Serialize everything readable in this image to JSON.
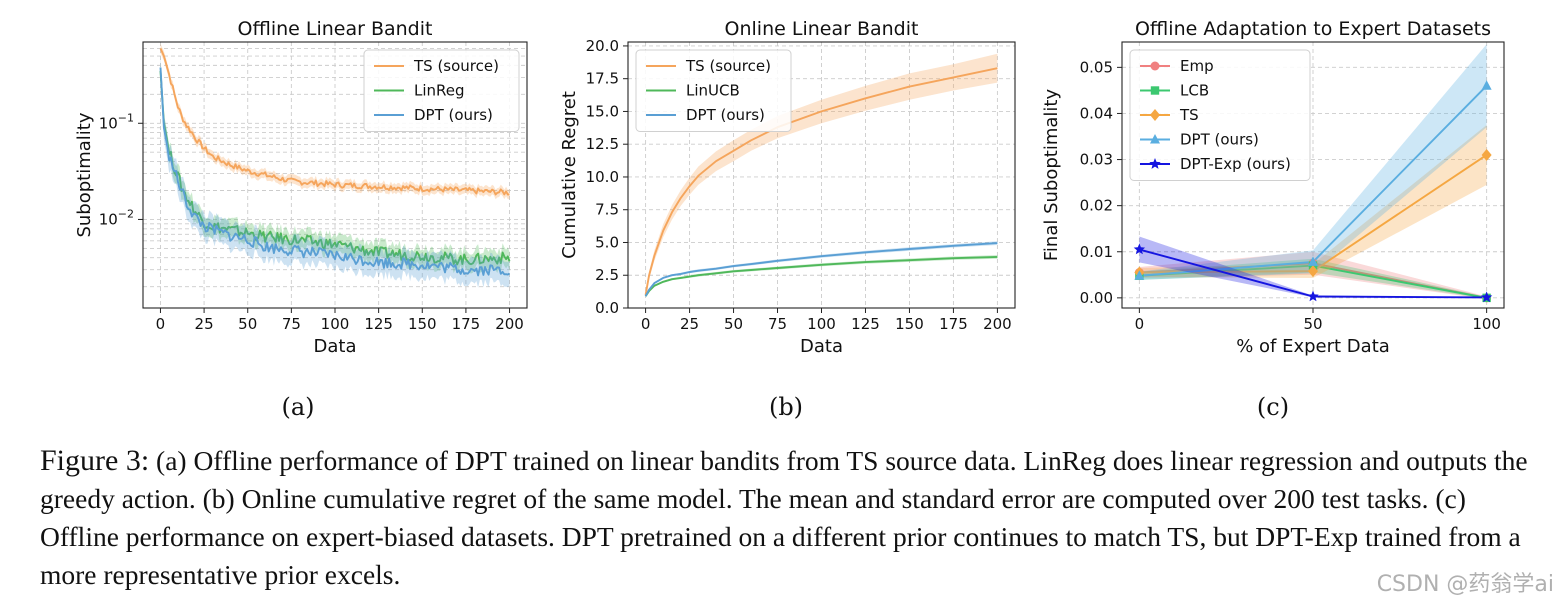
{
  "chart_data": [
    {
      "type": "line",
      "title": "Offline Linear Bandit",
      "xlabel": "Data",
      "ylabel": "Suboptimality",
      "yscale": "log",
      "xlim": [
        -10,
        210
      ],
      "ylim": [
        0.0012,
        0.7
      ],
      "xticks": [
        0,
        25,
        50,
        75,
        100,
        125,
        150,
        175,
        200
      ],
      "yticks": [
        {
          "value": 0.1,
          "base": "10",
          "exp": "−1"
        },
        {
          "value": 0.01,
          "base": "10",
          "exp": "−2"
        }
      ],
      "legend_position": "upper right",
      "x": [
        0,
        2,
        5,
        8,
        10,
        12,
        15,
        18,
        20,
        25,
        30,
        40,
        50,
        60,
        75,
        100,
        125,
        150,
        175,
        200
      ],
      "series": [
        {
          "name": "TS (source)",
          "color": "#f5a55c",
          "band_ratio": 1.12,
          "values": [
            0.6,
            0.5,
            0.32,
            0.2,
            0.15,
            0.12,
            0.095,
            0.08,
            0.07,
            0.055,
            0.045,
            0.037,
            0.032,
            0.029,
            0.025,
            0.023,
            0.022,
            0.021,
            0.02,
            0.019
          ]
        },
        {
          "name": "LinReg",
          "color": "#4fb85a",
          "band_ratio": 1.25,
          "values": [
            0.35,
            0.1,
            0.05,
            0.035,
            0.028,
            0.022,
            0.017,
            0.014,
            0.012,
            0.0095,
            0.0085,
            0.0078,
            0.0072,
            0.0066,
            0.0062,
            0.0055,
            0.0045,
            0.0042,
            0.0038,
            0.004
          ]
        },
        {
          "name": "DPT (ours)",
          "color": "#5a9fd4",
          "band_ratio": 1.35,
          "values": [
            0.38,
            0.09,
            0.045,
            0.032,
            0.025,
            0.02,
            0.015,
            0.012,
            0.0105,
            0.0085,
            0.0078,
            0.0068,
            0.0062,
            0.0052,
            0.0048,
            0.0042,
            0.0036,
            0.0034,
            0.003,
            0.003
          ]
        }
      ]
    },
    {
      "type": "line",
      "title": "Online Linear Bandit",
      "xlabel": "Data",
      "ylabel": "Cumulative Regret",
      "xlim": [
        -10,
        210
      ],
      "ylim": [
        0,
        20.3
      ],
      "xticks": [
        0,
        25,
        50,
        75,
        100,
        125,
        150,
        175,
        200
      ],
      "yticks": [
        0.0,
        2.5,
        5.0,
        7.5,
        10.0,
        12.5,
        15.0,
        17.5,
        20.0
      ],
      "legend_position": "upper left",
      "x": [
        0,
        2,
        5,
        10,
        15,
        20,
        25,
        30,
        40,
        50,
        60,
        75,
        100,
        125,
        150,
        175,
        200
      ],
      "series": [
        {
          "name": "TS (source)",
          "color": "#f5a55c",
          "values": [
            1.0,
            2.5,
            4.0,
            5.9,
            7.3,
            8.4,
            9.3,
            10.1,
            11.2,
            12.0,
            12.8,
            13.8,
            15.0,
            16.0,
            16.9,
            17.6,
            18.3
          ],
          "band": [
            0.1,
            0.3,
            0.4,
            0.5,
            0.55,
            0.6,
            0.65,
            0.7,
            0.75,
            0.8,
            0.8,
            0.85,
            0.9,
            0.95,
            1.0,
            1.0,
            1.1
          ]
        },
        {
          "name": "LinUCB",
          "color": "#4fb85a",
          "values": [
            0.9,
            1.3,
            1.7,
            2.0,
            2.2,
            2.3,
            2.4,
            2.5,
            2.65,
            2.8,
            2.9,
            3.05,
            3.3,
            3.5,
            3.65,
            3.8,
            3.9
          ],
          "band": [
            0.05,
            0.06,
            0.07,
            0.08,
            0.08,
            0.09,
            0.09,
            0.1,
            0.1,
            0.1,
            0.11,
            0.11,
            0.12,
            0.12,
            0.13,
            0.13,
            0.14
          ]
        },
        {
          "name": "DPT (ours)",
          "color": "#5a9fd4",
          "values": [
            0.9,
            1.4,
            1.9,
            2.3,
            2.5,
            2.6,
            2.75,
            2.85,
            3.0,
            3.2,
            3.35,
            3.6,
            3.95,
            4.25,
            4.5,
            4.75,
            4.95
          ],
          "band": [
            0.05,
            0.06,
            0.07,
            0.08,
            0.08,
            0.09,
            0.09,
            0.1,
            0.1,
            0.1,
            0.11,
            0.11,
            0.12,
            0.12,
            0.13,
            0.13,
            0.14
          ]
        }
      ]
    },
    {
      "type": "line",
      "title": "Offline Adaptation to Expert Datasets",
      "xlabel": "% of Expert Data",
      "ylabel": "Final Suboptimality",
      "xlim": [
        -5,
        105
      ],
      "ylim": [
        -0.0022,
        0.0555
      ],
      "xticks": [
        0,
        50,
        100
      ],
      "yticks": [
        0.0,
        0.01,
        0.02,
        0.03,
        0.04,
        0.05
      ],
      "legend_position": "upper left",
      "x": [
        0,
        50,
        100
      ],
      "series": [
        {
          "name": "Emp",
          "color": "#f08080",
          "marker": "circle",
          "values": [
            0.0055,
            0.0075,
            0.0
          ],
          "band": [
            0.0012,
            0.0025,
            0.0003
          ]
        },
        {
          "name": "LCB",
          "color": "#3cc870",
          "marker": "square",
          "values": [
            0.0048,
            0.007,
            0.0
          ],
          "band": [
            0.0009,
            0.0015,
            0.0002
          ]
        },
        {
          "name": "TS",
          "color": "#f5a742",
          "marker": "diamond",
          "values": [
            0.0055,
            0.0058,
            0.031
          ],
          "band": [
            0.001,
            0.0015,
            0.0065
          ]
        },
        {
          "name": "DPT (ours)",
          "color": "#5aaee0",
          "marker": "triangle",
          "values": [
            0.0048,
            0.0078,
            0.046
          ],
          "band": [
            0.0009,
            0.0025,
            0.009
          ]
        },
        {
          "name": "DPT-Exp (ours)",
          "color": "#1515e0",
          "marker": "star",
          "values": [
            0.0105,
            0.0003,
            0.0001
          ],
          "band": [
            0.0028,
            0.0002,
            0.0001
          ]
        }
      ]
    }
  ],
  "subfigure_labels": [
    "(a)",
    "(b)",
    "(c)"
  ],
  "caption": {
    "label": "Figure 3:",
    "text": "(a) Offline performance of DPT trained on linear bandits from TS source data. LinReg does linear regression and outputs the greedy action. (b) Online cumulative regret of the same model. The mean and standard error are computed over 200 test tasks. (c) Offline performance on expert-biased datasets. DPT pretrained on a different prior continues to match TS, but DPT-Exp trained from a more representative prior excels."
  },
  "watermark": "CSDN @药翁学ai"
}
